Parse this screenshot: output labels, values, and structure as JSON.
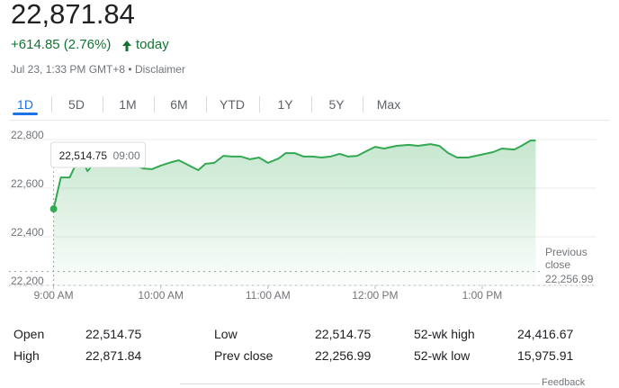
{
  "header": {
    "price": "22,871.84",
    "change": "+614.85 (2.76%)",
    "period": "today",
    "timestamp": "Jul 23, 1:33 PM GMT+8 • ",
    "disclaimer": "Disclaimer"
  },
  "tabs": [
    "1D",
    "5D",
    "1M",
    "6M",
    "YTD",
    "1Y",
    "5Y",
    "Max"
  ],
  "selected_tab": 0,
  "chart_data": {
    "type": "line",
    "color": "#34a853",
    "x": [
      540,
      544,
      549,
      553,
      556,
      559,
      563,
      568,
      573,
      578,
      585,
      590,
      595,
      600,
      606,
      610,
      613,
      617,
      621,
      625,
      630,
      635,
      640,
      645,
      650,
      655,
      660,
      666,
      670,
      675,
      680,
      685,
      690,
      695,
      700,
      705,
      710,
      715,
      720,
      725,
      732,
      739,
      744,
      751,
      756,
      761,
      766,
      772,
      779,
      786,
      791,
      798,
      802,
      807,
      810
    ],
    "values": [
      22514.75,
      22644,
      22644,
      22707,
      22715,
      22670,
      22707,
      22715,
      22700,
      22707,
      22696,
      22681,
      22678,
      22693,
      22707,
      22715,
      22704,
      22689,
      22674,
      22700,
      22704,
      22733,
      22730,
      22730,
      22719,
      22726,
      22704,
      22722,
      22744,
      22744,
      22730,
      22730,
      22726,
      22730,
      22741,
      22730,
      22733,
      22752,
      22770,
      22763,
      22774,
      22778,
      22774,
      22781,
      22774,
      22744,
      22726,
      22726,
      22737,
      22748,
      22763,
      22759,
      22774,
      22796,
      22796
    ],
    "xlim": [
      515,
      844
    ],
    "ylim": [
      22200,
      22800
    ],
    "xticks": [
      {
        "value": 540,
        "label": "9:00 AM"
      },
      {
        "value": 600,
        "label": "10:00 AM"
      },
      {
        "value": 660,
        "label": "11:00 AM"
      },
      {
        "value": 720,
        "label": "12:00 PM"
      },
      {
        "value": 780,
        "label": "1:00 PM"
      }
    ],
    "yticks": [
      {
        "value": 22200,
        "label": "22,200"
      },
      {
        "value": 22400,
        "label": "22,400"
      },
      {
        "value": 22600,
        "label": "22,600"
      },
      {
        "value": 22800,
        "label": "22,800"
      }
    ],
    "grid": true,
    "reference_line": {
      "value": 22256.99,
      "label": "Previous close",
      "value_label": "22,256.99"
    },
    "tooltip": {
      "index": 0,
      "value_label": "22,514.75",
      "time_label": "09:00"
    }
  },
  "stats": {
    "rows": [
      [
        "Open",
        "22,514.75",
        "Low",
        "22,514.75",
        "52-wk high",
        "24,416.67"
      ],
      [
        "High",
        "22,871.84",
        "Prev close",
        "22,256.99",
        "52-wk low",
        "15,975.91"
      ]
    ]
  },
  "footer": "Feedback"
}
